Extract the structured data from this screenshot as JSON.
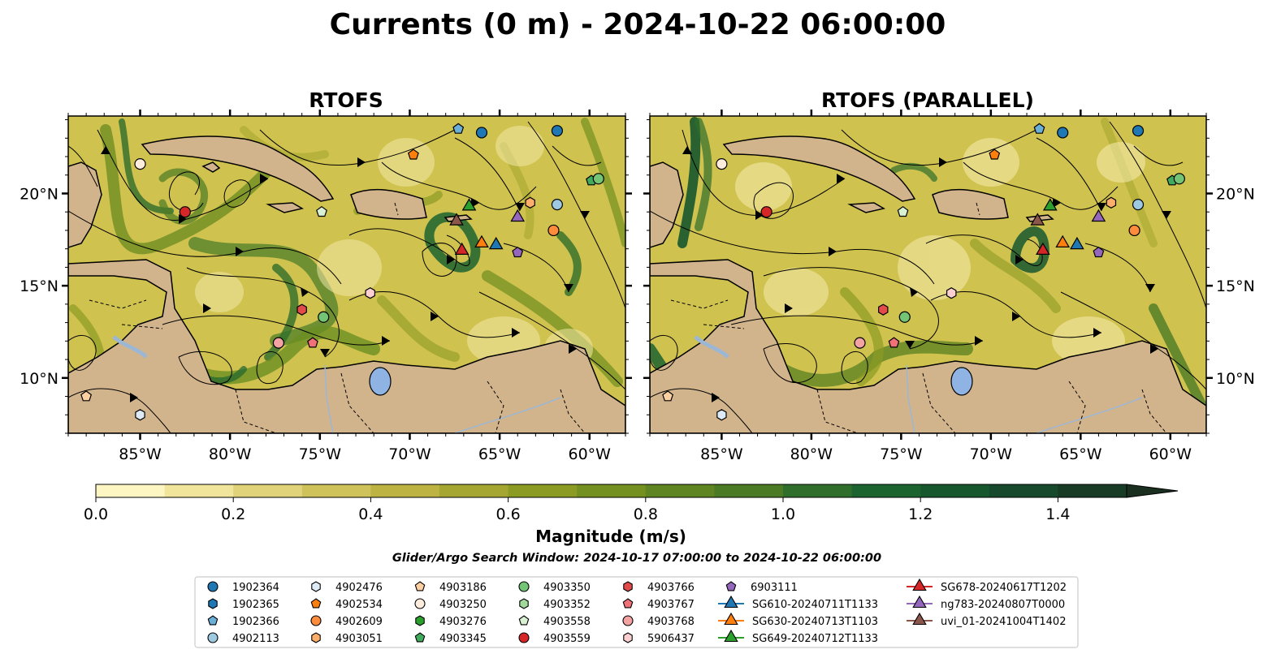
{
  "title": "Currents (0 m) - 2024-10-22 06:00:00",
  "search_window": "Glider/Argo Search Window: 2024-10-17 07:00:00 to 2024-10-22 06:00:00",
  "chart_data": [
    {
      "type": "heatmap",
      "title": "RTOFS",
      "lon_range": [
        -89,
        -58
      ],
      "lat_range": [
        7,
        24.2
      ],
      "xticks": [
        -85,
        -80,
        -75,
        -70,
        -65,
        -60
      ],
      "xtick_labels": [
        "85°W",
        "80°W",
        "75°W",
        "70°W",
        "65°W",
        "60°W"
      ],
      "yticks": [
        10,
        15,
        20
      ],
      "ytick_labels": [
        "10°N",
        "15°N",
        "20°N"
      ],
      "variable": "surface current magnitude with streamlines"
    },
    {
      "type": "heatmap",
      "title": "RTOFS (PARALLEL)",
      "lon_range": [
        -89,
        -58
      ],
      "lat_range": [
        7,
        24.2
      ],
      "xticks": [
        -85,
        -80,
        -75,
        -70,
        -65,
        -60
      ],
      "xtick_labels": [
        "85°W",
        "80°W",
        "75°W",
        "70°W",
        "65°W",
        "60°W"
      ],
      "yticks": [
        10,
        15,
        20
      ],
      "ytick_labels": [
        "10°N",
        "15°N",
        "20°N"
      ],
      "variable": "surface current magnitude with streamlines"
    }
  ],
  "colorbar": {
    "label": "Magnitude (m/s)",
    "vmin": 0.0,
    "vmax": 1.6,
    "ticks": [
      0.0,
      0.2,
      0.4,
      0.6,
      0.8,
      1.0,
      1.2,
      1.4
    ],
    "tick_labels": [
      "0.0",
      "0.2",
      "0.4",
      "0.6",
      "0.8",
      "1.0",
      "1.2",
      "1.4"
    ],
    "colors": [
      "#fdf6c3",
      "#f1e59b",
      "#e1d37a",
      "#d0c25a",
      "#bcb342",
      "#a5a631",
      "#8c9b24",
      "#749020",
      "#5f8523",
      "#4b7b25",
      "#2f6e2b",
      "#1c642f",
      "#17572e",
      "#174a2c",
      "#183b26",
      "#1a2f1f"
    ]
  },
  "legend": [
    {
      "label": "1902364",
      "marker": "circle",
      "color": "#1f77b4"
    },
    {
      "label": "1902365",
      "marker": "hexagon",
      "color": "#1f77b4"
    },
    {
      "label": "1902366",
      "marker": "pentagon",
      "color": "#6baed6"
    },
    {
      "label": "4902113",
      "marker": "circle",
      "color": "#9ecae1"
    },
    {
      "label": "4902476",
      "marker": "hexagon",
      "color": "#deebf7"
    },
    {
      "label": "4902534",
      "marker": "pentagon",
      "color": "#ff7f0e"
    },
    {
      "label": "4902609",
      "marker": "circle",
      "color": "#fd8d3c"
    },
    {
      "label": "4903051",
      "marker": "hexagon",
      "color": "#fdae6b"
    },
    {
      "label": "4903186",
      "marker": "pentagon",
      "color": "#fdd0a2"
    },
    {
      "label": "4903250",
      "marker": "circle",
      "color": "#feeddd"
    },
    {
      "label": "4903276",
      "marker": "hexagon",
      "color": "#2ca02c"
    },
    {
      "label": "4903345",
      "marker": "pentagon",
      "color": "#41ab5d"
    },
    {
      "label": "4903350",
      "marker": "circle",
      "color": "#74c476"
    },
    {
      "label": "4903352",
      "marker": "hexagon",
      "color": "#a1d99b"
    },
    {
      "label": "4903558",
      "marker": "pentagon",
      "color": "#d9f0d3"
    },
    {
      "label": "4903559",
      "marker": "circle",
      "color": "#d62728"
    },
    {
      "label": "4903766",
      "marker": "hexagon",
      "color": "#e34a4a"
    },
    {
      "label": "4903767",
      "marker": "pentagon",
      "color": "#f07178"
    },
    {
      "label": "4903768",
      "marker": "circle",
      "color": "#f4a3a3"
    },
    {
      "label": "5906437",
      "marker": "hexagon",
      "color": "#fcd0d0"
    },
    {
      "label": "6903111",
      "marker": "pentagon",
      "color": "#9467bd"
    },
    {
      "label": "SG610-20240711T1133",
      "marker": "triangle",
      "color": "#1f77b4"
    },
    {
      "label": "SG630-20240713T1103",
      "marker": "triangle",
      "color": "#ff7f0e"
    },
    {
      "label": "SG649-20240712T1133",
      "marker": "triangle",
      "color": "#2ca02c"
    },
    {
      "label": "SG678-20240617T1202",
      "marker": "triangle",
      "color": "#d62728"
    },
    {
      "label": "ng783-20240807T0000",
      "marker": "triangle",
      "color": "#9467bd"
    },
    {
      "label": "uvi_01-20241004T1402",
      "marker": "triangle",
      "color": "#8c564b"
    }
  ],
  "markers": [
    {
      "id": "4903250",
      "lon": -85.0,
      "lat": 21.6
    },
    {
      "id": "4903559",
      "lon": -82.5,
      "lat": 19.0
    },
    {
      "id": "4902534",
      "lon": -69.8,
      "lat": 22.1
    },
    {
      "id": "1902366",
      "lon": -67.3,
      "lat": 23.5
    },
    {
      "id": "1902364",
      "lon": -66.0,
      "lat": 23.3
    },
    {
      "id": "1902364",
      "lon": -61.8,
      "lat": 23.4
    },
    {
      "id": "4903345",
      "lon": -59.9,
      "lat": 20.7
    },
    {
      "id": "4903350",
      "lon": -59.5,
      "lat": 20.8
    },
    {
      "id": "4903051",
      "lon": -63.3,
      "lat": 19.5
    },
    {
      "id": "4902113",
      "lon": -61.8,
      "lat": 19.4
    },
    {
      "id": "4902609",
      "lon": -62.0,
      "lat": 18.0
    },
    {
      "id": "4903558",
      "lon": -74.9,
      "lat": 19.0
    },
    {
      "id": "6903111",
      "lon": -64.0,
      "lat": 16.8
    },
    {
      "id": "5906437",
      "lon": -72.2,
      "lat": 14.6
    },
    {
      "id": "4903766",
      "lon": -76.0,
      "lat": 13.7
    },
    {
      "id": "4903350",
      "lon": -74.8,
      "lat": 13.3
    },
    {
      "id": "4903768",
      "lon": -77.3,
      "lat": 11.9
    },
    {
      "id": "4903767",
      "lon": -75.4,
      "lat": 11.9
    },
    {
      "id": "4903186",
      "lon": -88.0,
      "lat": 9.0
    },
    {
      "id": "4902476",
      "lon": -85.0,
      "lat": 8.0
    },
    {
      "id": "SG649-20240712T1133",
      "lon": -66.7,
      "lat": 19.3
    },
    {
      "id": "uvi_01-20241004T1402",
      "lon": -67.4,
      "lat": 18.5
    },
    {
      "id": "ng783-20240807T0000",
      "lon": -64.0,
      "lat": 18.7
    },
    {
      "id": "SG630-20240713T1103",
      "lon": -66.0,
      "lat": 17.3
    },
    {
      "id": "SG610-20240711T1133",
      "lon": -65.2,
      "lat": 17.2
    },
    {
      "id": "SG678-20240617T1202",
      "lon": -67.1,
      "lat": 16.9
    }
  ]
}
